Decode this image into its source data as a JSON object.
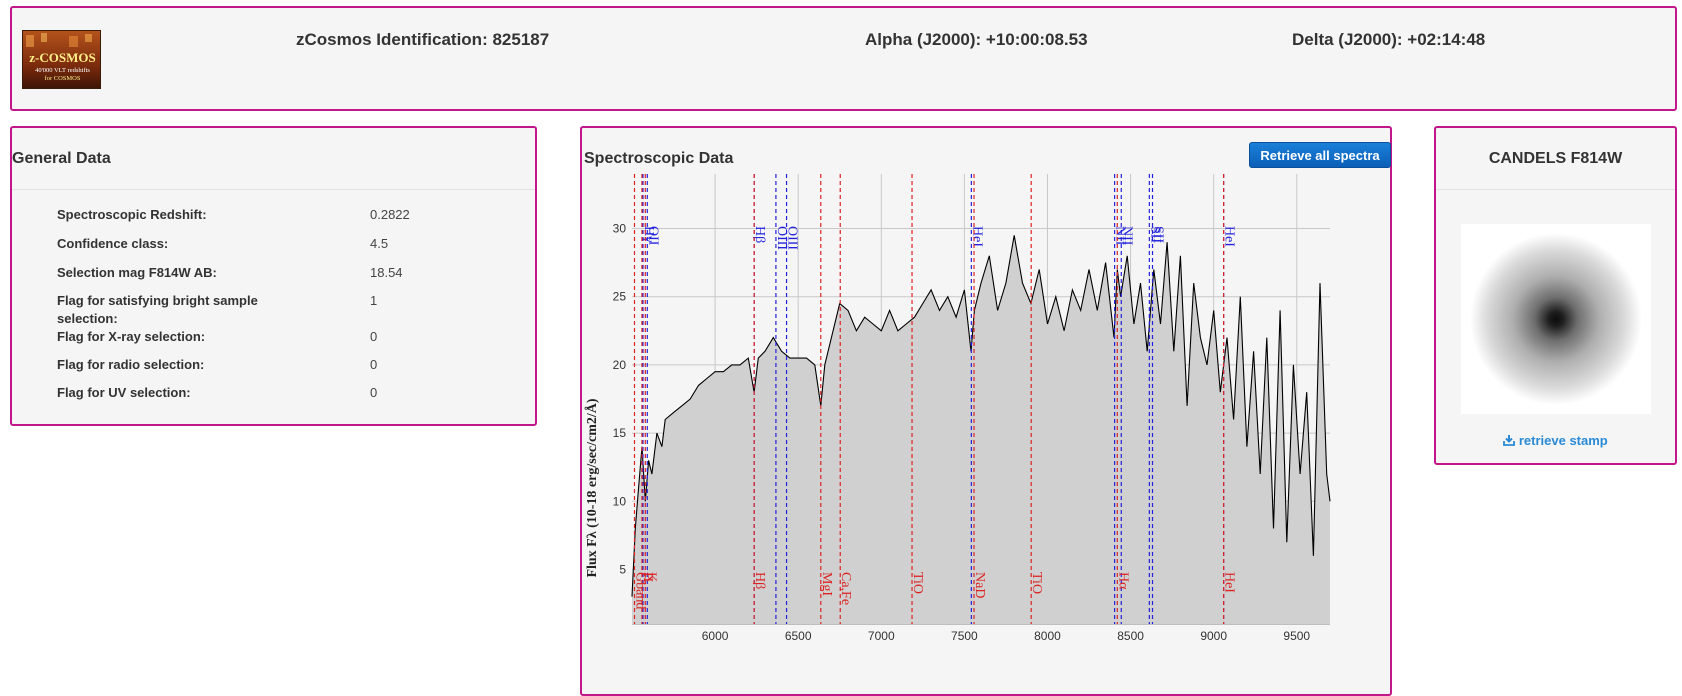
{
  "header": {
    "logo": {
      "line1": "z-COSMOS",
      "line2": "40'000 VLT redshifts",
      "line3": "for COSMOS"
    },
    "zcosmos_id": "zCosmos Identification: 825187",
    "alpha": "Alpha (J2000): +10:00:08.53",
    "delta": "Delta (J2000): +02:14:48"
  },
  "general": {
    "title": "General Data",
    "rows": [
      {
        "label": "Spectroscopic Redshift:",
        "value": "0.2822"
      },
      {
        "label": "Confidence class:",
        "value": "4.5"
      },
      {
        "label": "Selection mag F814W AB:",
        "value": "18.54"
      },
      {
        "label": "Flag for satisfying bright sample selection:",
        "value": "1"
      },
      {
        "label": "Flag for X-ray selection:",
        "value": "0"
      },
      {
        "label": "Flag for radio selection:",
        "value": "0"
      },
      {
        "label": "Flag for UV selection:",
        "value": "0"
      }
    ]
  },
  "spectro": {
    "title": "Spectroscopic Data",
    "retrieve_all_label": "Retrieve all spectra"
  },
  "candels": {
    "title": "CANDELS F814W",
    "retrieve_stamp_label": "retrieve stamp",
    "download_icon": "download-icon"
  },
  "chart_data": {
    "type": "area",
    "ylabel": "Flux Fλ (10-18 erg/sec/cm2/Å)",
    "xlim": [
      5500,
      9700
    ],
    "ylim": [
      1,
      34
    ],
    "x_ticks": [
      6000,
      6500,
      7000,
      7500,
      8000,
      8500,
      9000,
      9500
    ],
    "y_ticks": [
      5,
      10,
      15,
      20,
      25,
      30
    ],
    "grid": true,
    "fill_color": "#d0d0d0",
    "line_color": "#000000",
    "emission_lines": [
      {
        "label": "OII",
        "x": 5592
      },
      {
        "label": "Hγ",
        "x": 5566
      },
      {
        "label": "Hβ",
        "x": 6235
      },
      {
        "label": "OIII",
        "x": 6366
      },
      {
        "label": "OIII",
        "x": 6430
      },
      {
        "label": "HeI",
        "x": 7542
      },
      {
        "label": "NII",
        "x": 8404
      },
      {
        "label": "NII",
        "x": 8444
      },
      {
        "label": "SII",
        "x": 8613
      },
      {
        "label": "SII",
        "x": 8632
      },
      {
        "label": "HeI",
        "x": 9060
      }
    ],
    "absorption_lines": [
      {
        "label": "Gband",
        "x": 5515
      },
      {
        "label": "H",
        "x": 5560
      },
      {
        "label": "K",
        "x": 5580
      },
      {
        "label": "Hβ",
        "x": 6235
      },
      {
        "label": "MgI",
        "x": 6636
      },
      {
        "label": "Ca,Fe",
        "x": 6753
      },
      {
        "label": "TiO",
        "x": 7185
      },
      {
        "label": "NaD",
        "x": 7558
      },
      {
        "label": "TiO",
        "x": 7902
      },
      {
        "label": "Hα",
        "x": 8420
      },
      {
        "label": "HeI",
        "x": 9060
      }
    ],
    "series": [
      {
        "x": [
          5500,
          5520,
          5540,
          5560,
          5580,
          5600,
          5620,
          5650,
          5680,
          5700,
          5750,
          5800,
          5850,
          5900,
          5950,
          6000,
          6050,
          6100,
          6150,
          6200,
          6235,
          6260,
          6300,
          6350,
          6400,
          6450,
          6500,
          6550,
          6600,
          6636,
          6660,
          6700,
          6750,
          6800,
          6850,
          6900,
          6950,
          7000,
          7050,
          7100,
          7150,
          7200,
          7250,
          7300,
          7350,
          7400,
          7450,
          7500,
          7540,
          7560,
          7600,
          7650,
          7700,
          7750,
          7800,
          7850,
          7900,
          7950,
          8000,
          8050,
          8100,
          8150,
          8200,
          8250,
          8300,
          8350,
          8400,
          8420,
          8440,
          8480,
          8520,
          8560,
          8600,
          8640,
          8680,
          8720,
          8760,
          8800,
          8840,
          8880,
          8920,
          8960,
          9000,
          9040,
          9080,
          9120,
          9160,
          9200,
          9240,
          9280,
          9320,
          9360,
          9400,
          9440,
          9480,
          9520,
          9560,
          9600,
          9640,
          9680,
          9700
        ],
        "y": [
          3,
          8,
          11,
          14,
          10,
          13,
          12,
          15,
          14,
          16,
          16.5,
          17,
          17.5,
          18.5,
          19,
          19.5,
          19.5,
          20,
          20,
          20.5,
          18,
          20.5,
          21,
          22,
          21,
          20.5,
          20.5,
          20.5,
          20,
          17,
          20,
          22,
          24.5,
          24,
          22.5,
          23.5,
          23,
          22.5,
          24,
          22.5,
          23,
          23.5,
          24.5,
          25.5,
          24,
          25,
          23.5,
          25.5,
          21,
          24,
          26,
          28,
          24,
          26,
          29.5,
          26,
          24.5,
          27,
          23,
          25,
          22.5,
          25.5,
          24,
          27,
          24,
          27.5,
          22,
          27,
          25,
          28,
          23,
          26,
          21,
          27,
          23,
          29,
          21,
          28,
          17,
          26,
          22,
          20,
          24,
          18,
          22,
          16,
          25,
          14,
          21,
          12,
          22,
          8,
          24,
          7,
          20,
          12,
          18,
          6,
          26,
          12,
          10
        ]
      }
    ]
  }
}
